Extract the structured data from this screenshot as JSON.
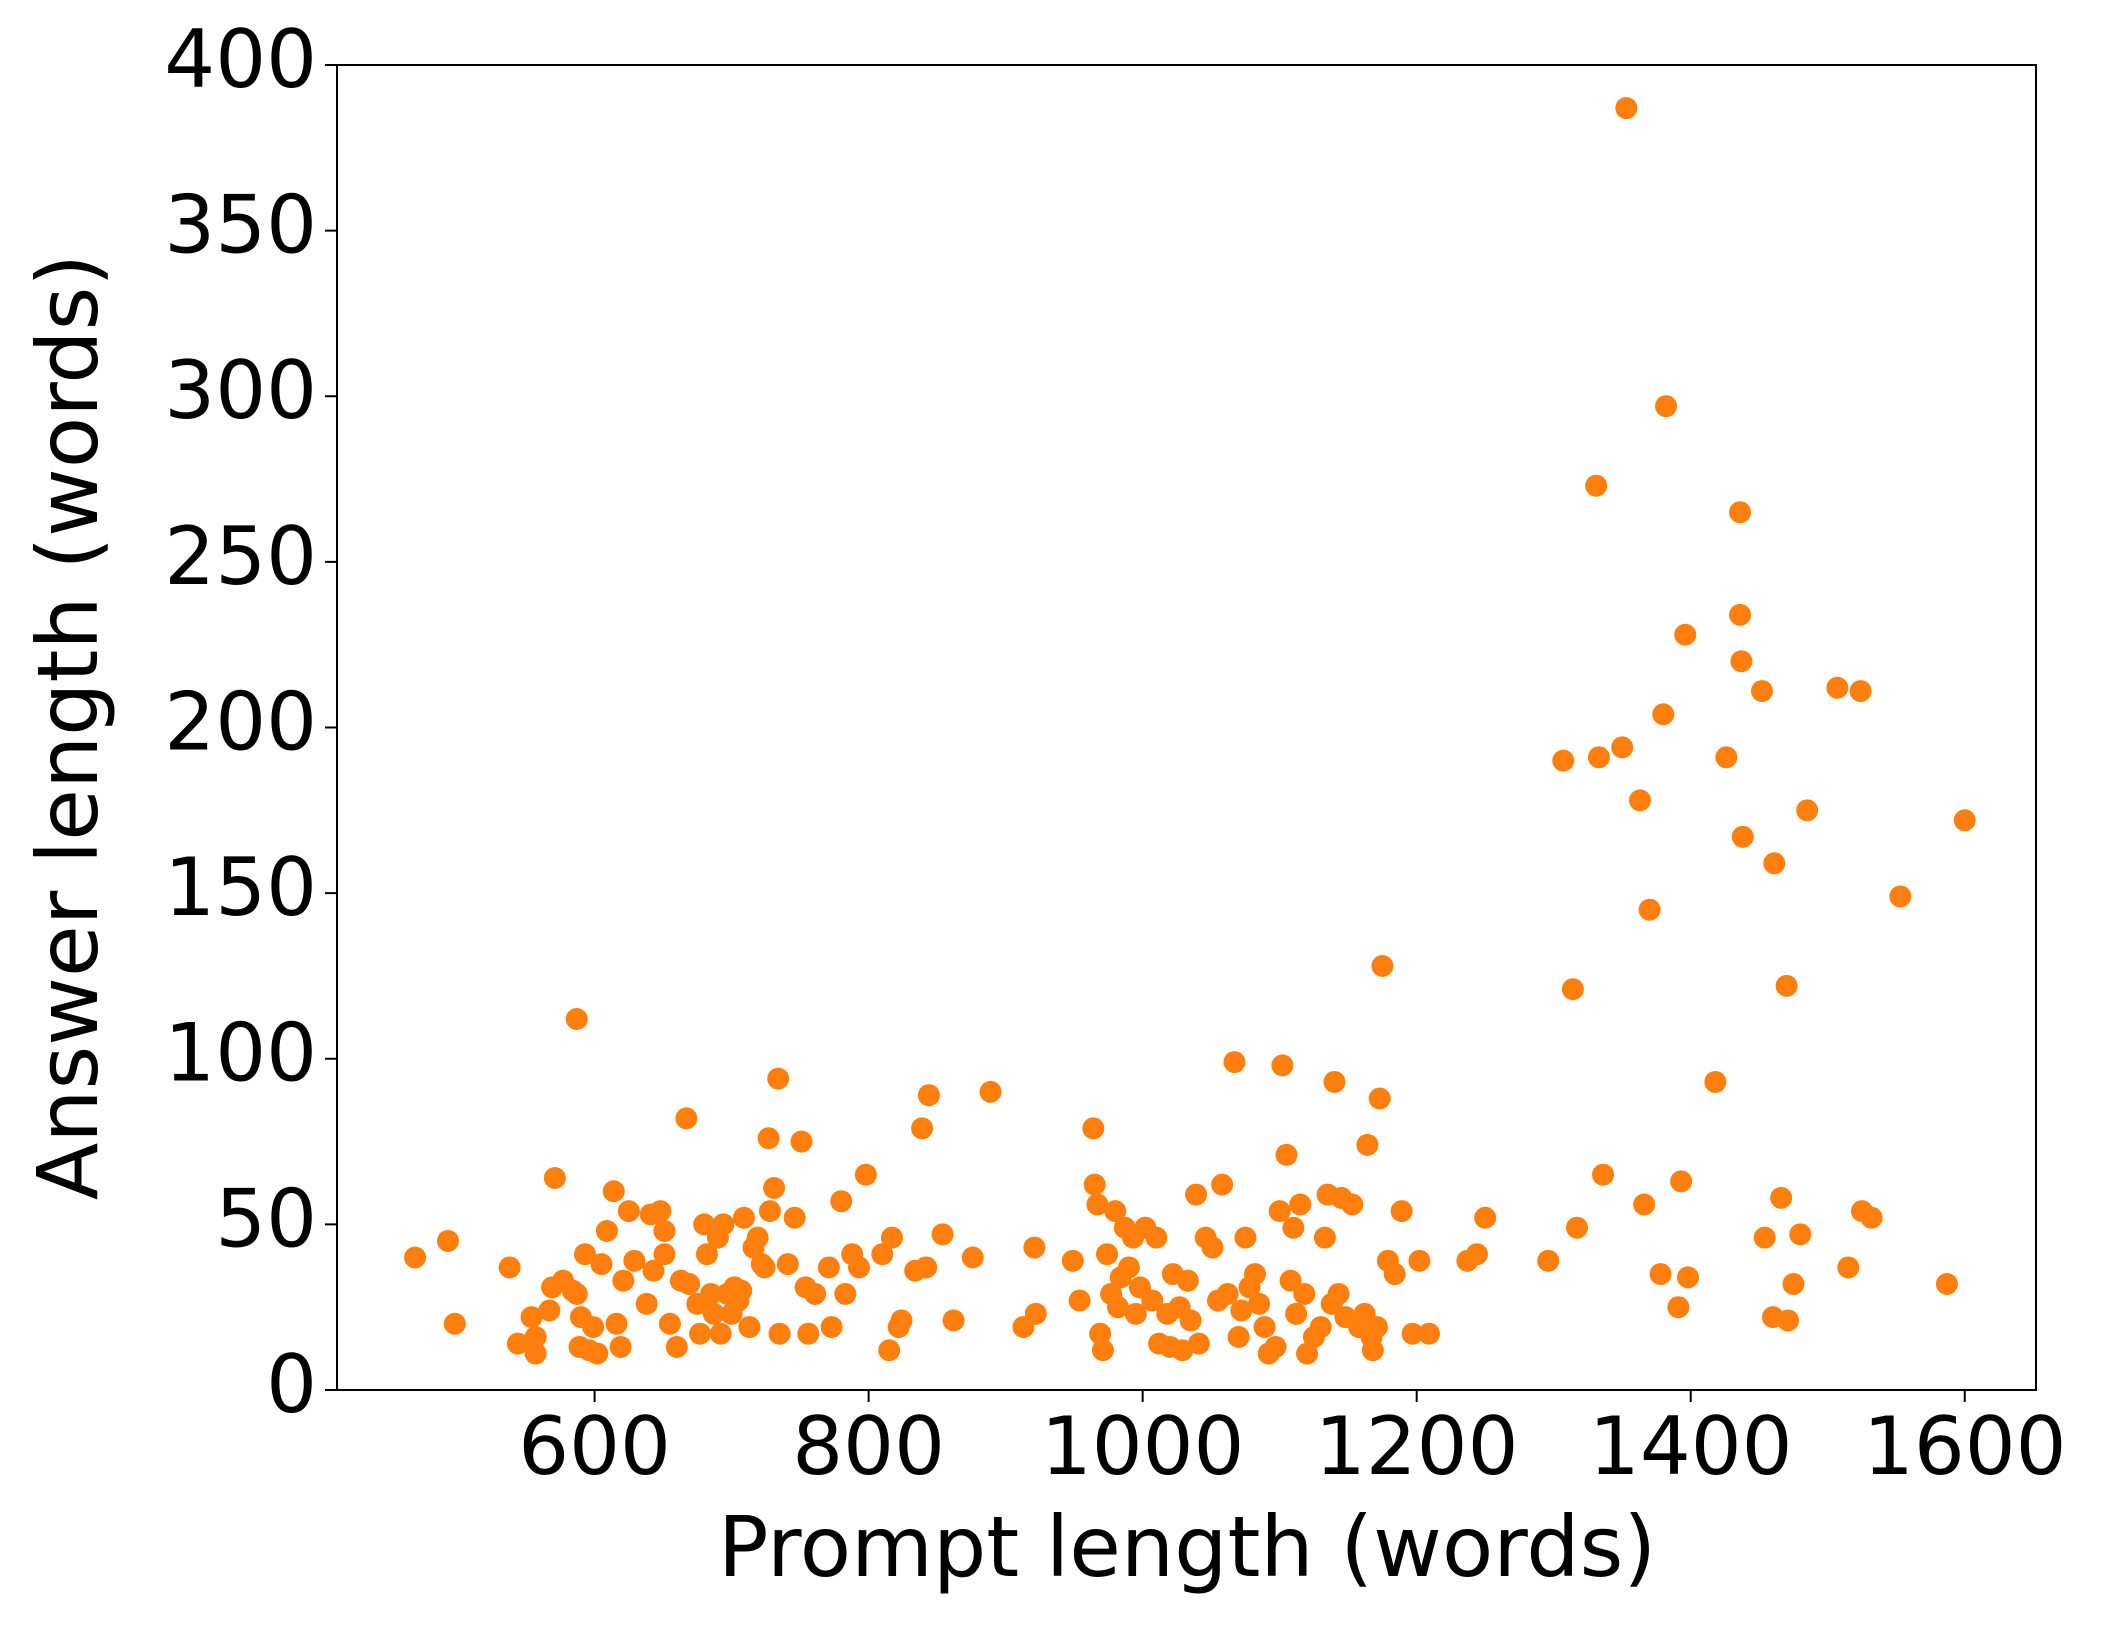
{
  "chart_data": {
    "type": "scatter",
    "x_label": "Prompt length (words)",
    "y_label": "Answer length (words)",
    "xlim": [
      412,
      1652
    ],
    "ylim": [
      0,
      400
    ],
    "xticks": [
      600,
      800,
      1000,
      1200,
      1400,
      1600
    ],
    "yticks": [
      0,
      50,
      100,
      150,
      200,
      250,
      300,
      350,
      400
    ],
    "series": [
      {
        "color": "#ff7f0e",
        "x": [
          469,
          493,
          498,
          538,
          544,
          557,
          557,
          554,
          567,
          571,
          569,
          577,
          584,
          587,
          587,
          589,
          590,
          593,
          596,
          599,
          602,
          605,
          609,
          614,
          616,
          619,
          621,
          625,
          629,
          638,
          641,
          643,
          648,
          651,
          651,
          655,
          660,
          663,
          667,
          669,
          675,
          677,
          680,
          682,
          685,
          687,
          690,
          692,
          694,
          697,
          700,
          702,
          705,
          707,
          709,
          713,
          716,
          719,
          722,
          724,
          727,
          728,
          731,
          734,
          735,
          741,
          746,
          751,
          754,
          756,
          761,
          771,
          773,
          780,
          783,
          788,
          793,
          798,
          810,
          815,
          817,
          822,
          824,
          834,
          839,
          842,
          844,
          854,
          862,
          876,
          889,
          913,
          921,
          922,
          949,
          954,
          964,
          965,
          967,
          969,
          971,
          974,
          977,
          980,
          982,
          984,
          987,
          990,
          993,
          995,
          998,
          1002,
          1007,
          1010,
          1012,
          1018,
          1020,
          1022,
          1027,
          1029,
          1033,
          1035,
          1039,
          1041,
          1046,
          1051,
          1055,
          1058,
          1062,
          1067,
          1070,
          1072,
          1075,
          1078,
          1082,
          1085,
          1089,
          1092,
          1097,
          1100,
          1102,
          1105,
          1108,
          1110,
          1112,
          1115,
          1118,
          1120,
          1125,
          1130,
          1133,
          1135,
          1138,
          1140,
          1143,
          1145,
          1148,
          1153,
          1158,
          1162,
          1164,
          1167,
          1168,
          1171,
          1173,
          1175,
          1179,
          1184,
          1189,
          1197,
          1202,
          1209,
          1237,
          1244,
          1250,
          1296,
          1307,
          1314,
          1317,
          1331,
          1333,
          1336,
          1350,
          1353,
          1363,
          1366,
          1370,
          1378,
          1380,
          1382,
          1391,
          1393,
          1396,
          1398,
          1418,
          1426,
          1436,
          1436,
          1437,
          1438,
          1452,
          1454,
          1460,
          1461,
          1466,
          1470,
          1471,
          1475,
          1480,
          1485,
          1507,
          1515,
          1524,
          1525,
          1532,
          1553,
          1587,
          1600
        ],
        "values": [
          40,
          45,
          20,
          37,
          14,
          16,
          11,
          22,
          24,
          64,
          31,
          33,
          30,
          112,
          29,
          13,
          22,
          41,
          12,
          19,
          11,
          38,
          48,
          60,
          20,
          13,
          33,
          54,
          39,
          26,
          53,
          36,
          54,
          48,
          41,
          20,
          13,
          33,
          82,
          32,
          26,
          17,
          50,
          41,
          29,
          23,
          46,
          17,
          50,
          29,
          23,
          31,
          27,
          30,
          52,
          19,
          43,
          46,
          38,
          37,
          76,
          54,
          61,
          94,
          17,
          38,
          52,
          75,
          31,
          17,
          29,
          37,
          19,
          57,
          29,
          41,
          37,
          65,
          41,
          12,
          46,
          19,
          21,
          36,
          79,
          37,
          89,
          47,
          21,
          40,
          90,
          19,
          43,
          23,
          39,
          27,
          79,
          62,
          56,
          17,
          12,
          41,
          29,
          54,
          25,
          34,
          49,
          37,
          46,
          23,
          31,
          49,
          27,
          46,
          14,
          23,
          13,
          35,
          25,
          12,
          33,
          21,
          59,
          14,
          46,
          43,
          27,
          62,
          29,
          99,
          16,
          24,
          46,
          31,
          35,
          26,
          19,
          11,
          13,
          54,
          98,
          71,
          33,
          49,
          23,
          56,
          29,
          11,
          16,
          19,
          46,
          59,
          26,
          93,
          29,
          58,
          22,
          56,
          19,
          23,
          74,
          16,
          12,
          19,
          88,
          128,
          39,
          35,
          54,
          17,
          39,
          17,
          39,
          41,
          52,
          39,
          190,
          121,
          49,
          273,
          191,
          65,
          194,
          387,
          178,
          56,
          145,
          35,
          204,
          297,
          25,
          63,
          228,
          34,
          93,
          191,
          265,
          234,
          220,
          167,
          211,
          46,
          22,
          159,
          58,
          122,
          21,
          32,
          47,
          175,
          212,
          37,
          211,
          54,
          52,
          149,
          32,
          172
        ]
      }
    ]
  }
}
